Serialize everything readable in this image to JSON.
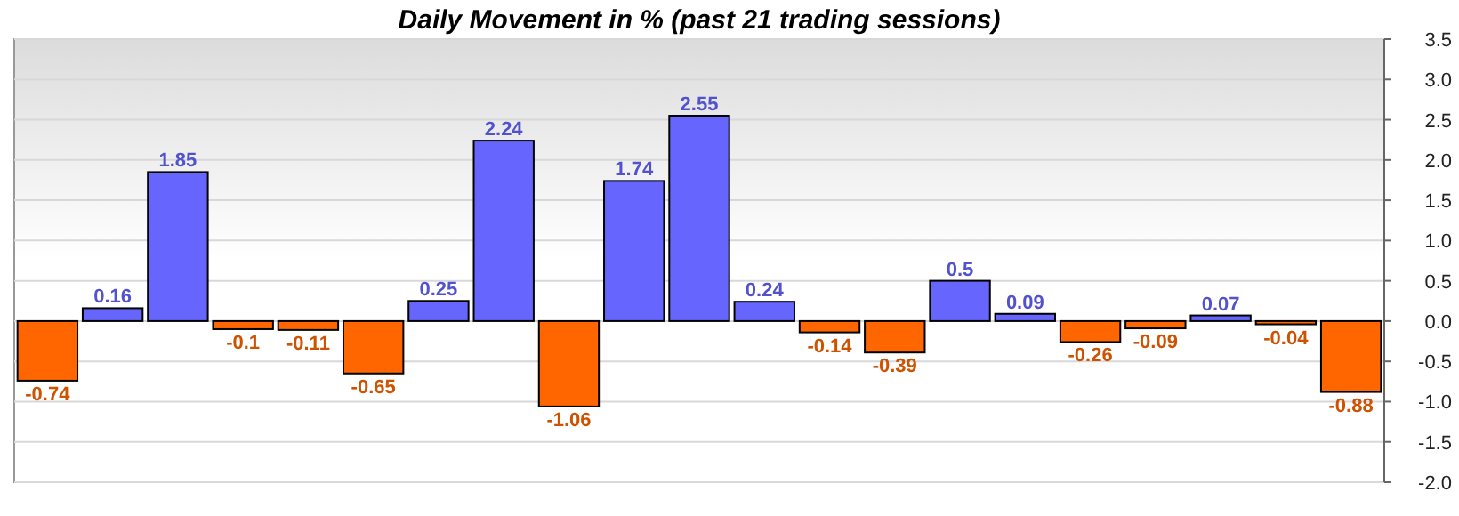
{
  "chart_data": {
    "type": "bar",
    "title": "Daily Movement in % (past 21 trading sessions)",
    "categories": [
      null,
      null,
      null,
      null,
      null,
      null,
      null,
      null,
      null,
      null,
      null,
      null,
      null,
      null,
      null,
      null,
      null,
      null,
      null,
      null,
      null
    ],
    "values": [
      -0.74,
      0.16,
      1.85,
      -0.1,
      -0.11,
      -0.65,
      0.25,
      2.24,
      -1.06,
      1.74,
      2.55,
      0.24,
      -0.14,
      -0.39,
      0.5,
      0.09,
      -0.26,
      -0.09,
      0.07,
      -0.04,
      -0.88
    ],
    "colors": [
      "#ff6600",
      "#6666ff",
      "#6666ff",
      "#ff6600",
      "#ff6600",
      "#ff6600",
      "#6666ff",
      "#6666ff",
      "#ff6600",
      "#6666ff",
      "#6666ff",
      "#6666ff",
      "#ff6600",
      "#ff6600",
      "#6666ff",
      "#6666ff",
      "#ff6600",
      "#ff6600",
      "#6666ff",
      "#ff6600",
      "#ff6600"
    ],
    "data_labels": true,
    "ylim": [
      -2,
      3.5
    ],
    "yticks": [
      {
        "value": -2,
        "label": "-2.0"
      },
      -1.5,
      {
        "value": -1,
        "label": "-1.0"
      },
      -0.5,
      {
        "value": 0,
        "label": "0.0"
      },
      0.5,
      {
        "value": 1,
        "label": "1.0"
      },
      1.5,
      {
        "value": 2,
        "label": "2.0"
      },
      2.5,
      {
        "value": 3,
        "label": "3.0"
      },
      3.5
    ],
    "grid": "y"
  }
}
